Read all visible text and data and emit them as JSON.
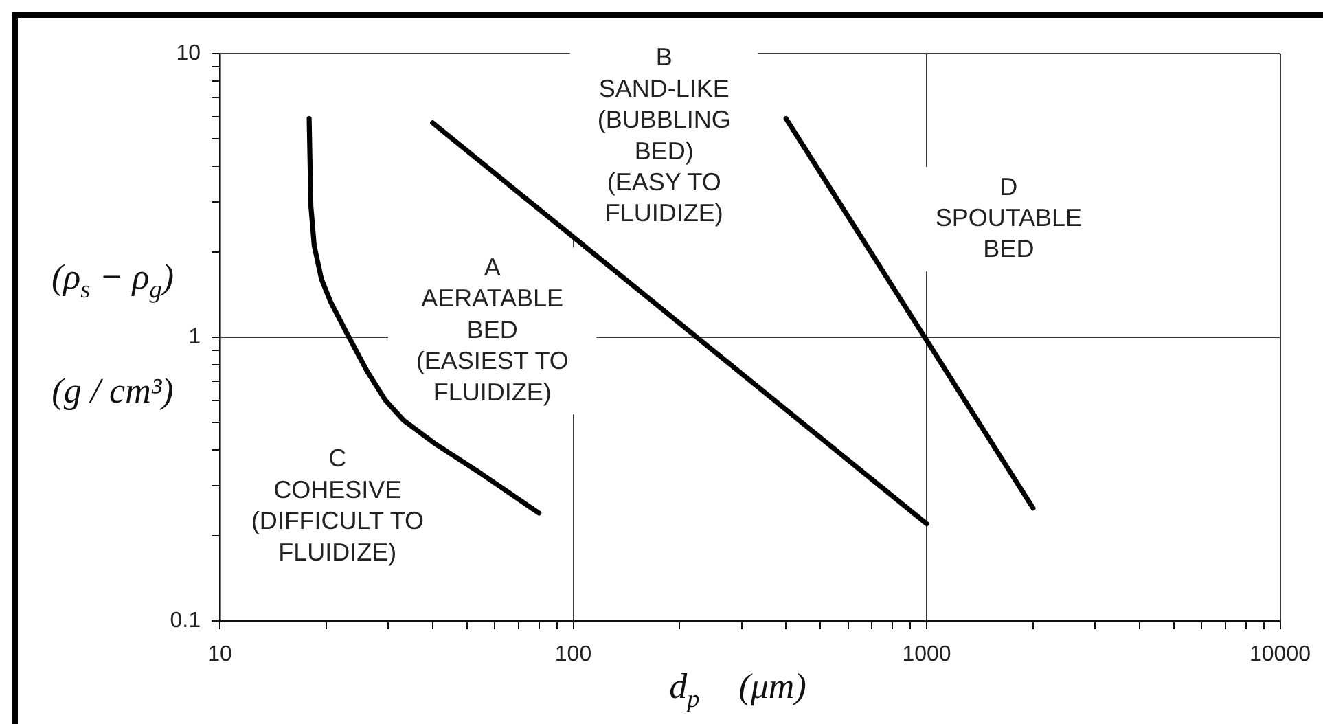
{
  "chart_data": {
    "type": "line",
    "xlabel": "d$_{p}$ (μm)",
    "ylabel": "(ρ$_{s}$ − ρ$_{g}$)\n(g / cm³)",
    "log": "xy",
    "grid": true,
    "xlim": [
      10,
      10000
    ],
    "ylim": [
      0.1,
      10
    ],
    "xticks": [
      10,
      {
        "value": 20,
        "label": null
      },
      {
        "value": 30,
        "label": null
      },
      {
        "value": 40,
        "label": null
      },
      {
        "value": 50,
        "label": null
      },
      {
        "value": 60,
        "label": null
      },
      {
        "value": 70,
        "label": null
      },
      {
        "value": 80,
        "label": null
      },
      {
        "value": 90,
        "label": null
      },
      100,
      {
        "value": 200,
        "label": null
      },
      {
        "value": 300,
        "label": null
      },
      {
        "value": 400,
        "label": null
      },
      {
        "value": 500,
        "label": null
      },
      {
        "value": 600,
        "label": null
      },
      {
        "value": 700,
        "label": null
      },
      {
        "value": 800,
        "label": null
      },
      {
        "value": 900,
        "label": null
      },
      1000,
      {
        "value": 2000,
        "label": null
      },
      {
        "value": 3000,
        "label": null
      },
      {
        "value": 4000,
        "label": null
      },
      {
        "value": 5000,
        "label": null
      },
      {
        "value": 6000,
        "label": null
      },
      {
        "value": 7000,
        "label": null
      },
      {
        "value": 8000,
        "label": null
      },
      {
        "value": 9000,
        "label": null
      },
      10000
    ],
    "yticks": [
      0.1,
      {
        "value": 0.2,
        "label": null
      },
      {
        "value": 0.3,
        "label": null
      },
      {
        "value": 0.4,
        "label": null
      },
      {
        "value": 0.5,
        "label": null
      },
      {
        "value": 0.6,
        "label": null
      },
      {
        "value": 0.7,
        "label": null
      },
      {
        "value": 0.8,
        "label": null
      },
      {
        "value": 0.9,
        "label": null
      },
      1,
      {
        "value": 2,
        "label": null
      },
      {
        "value": 3,
        "label": null
      },
      {
        "value": 4,
        "label": null
      },
      {
        "value": 5,
        "label": null
      },
      {
        "value": 6,
        "label": null
      },
      {
        "value": 7,
        "label": null
      },
      {
        "value": 8,
        "label": null
      },
      {
        "value": 9,
        "label": null
      },
      10
    ],
    "annotations": [
      "A\nAERATABLE\nBED\n(EASIEST TO\nFLUIDIZE)",
      "B\nSAND-LIKE\n(BUBBLING\nBED)\n(EASY TO\nFLUIDIZE)",
      "C\nCOHESIVE\n(DIFFICULT TO\nFLUIDIZE)",
      "D\nSPOUTABLE\nBED"
    ],
    "series": [
      {
        "color": "#000000",
        "x": [
          17.9,
          18.1,
          18.5,
          19.4,
          20.6,
          23.2,
          26.1,
          29.4,
          33.1,
          40.8,
          55,
          80
        ],
        "values": [
          5.9,
          2.9,
          2.1,
          1.6,
          1.33,
          1.0,
          0.76,
          0.6,
          0.51,
          0.42,
          0.33,
          0.24
        ]
      },
      {
        "color": "#000000",
        "x": [
          40,
          1000
        ],
        "values": [
          5.7,
          0.22
        ]
      },
      {
        "color": "#000000",
        "x": [
          400,
          2000
        ],
        "values": [
          5.9,
          0.25
        ]
      }
    ]
  }
}
